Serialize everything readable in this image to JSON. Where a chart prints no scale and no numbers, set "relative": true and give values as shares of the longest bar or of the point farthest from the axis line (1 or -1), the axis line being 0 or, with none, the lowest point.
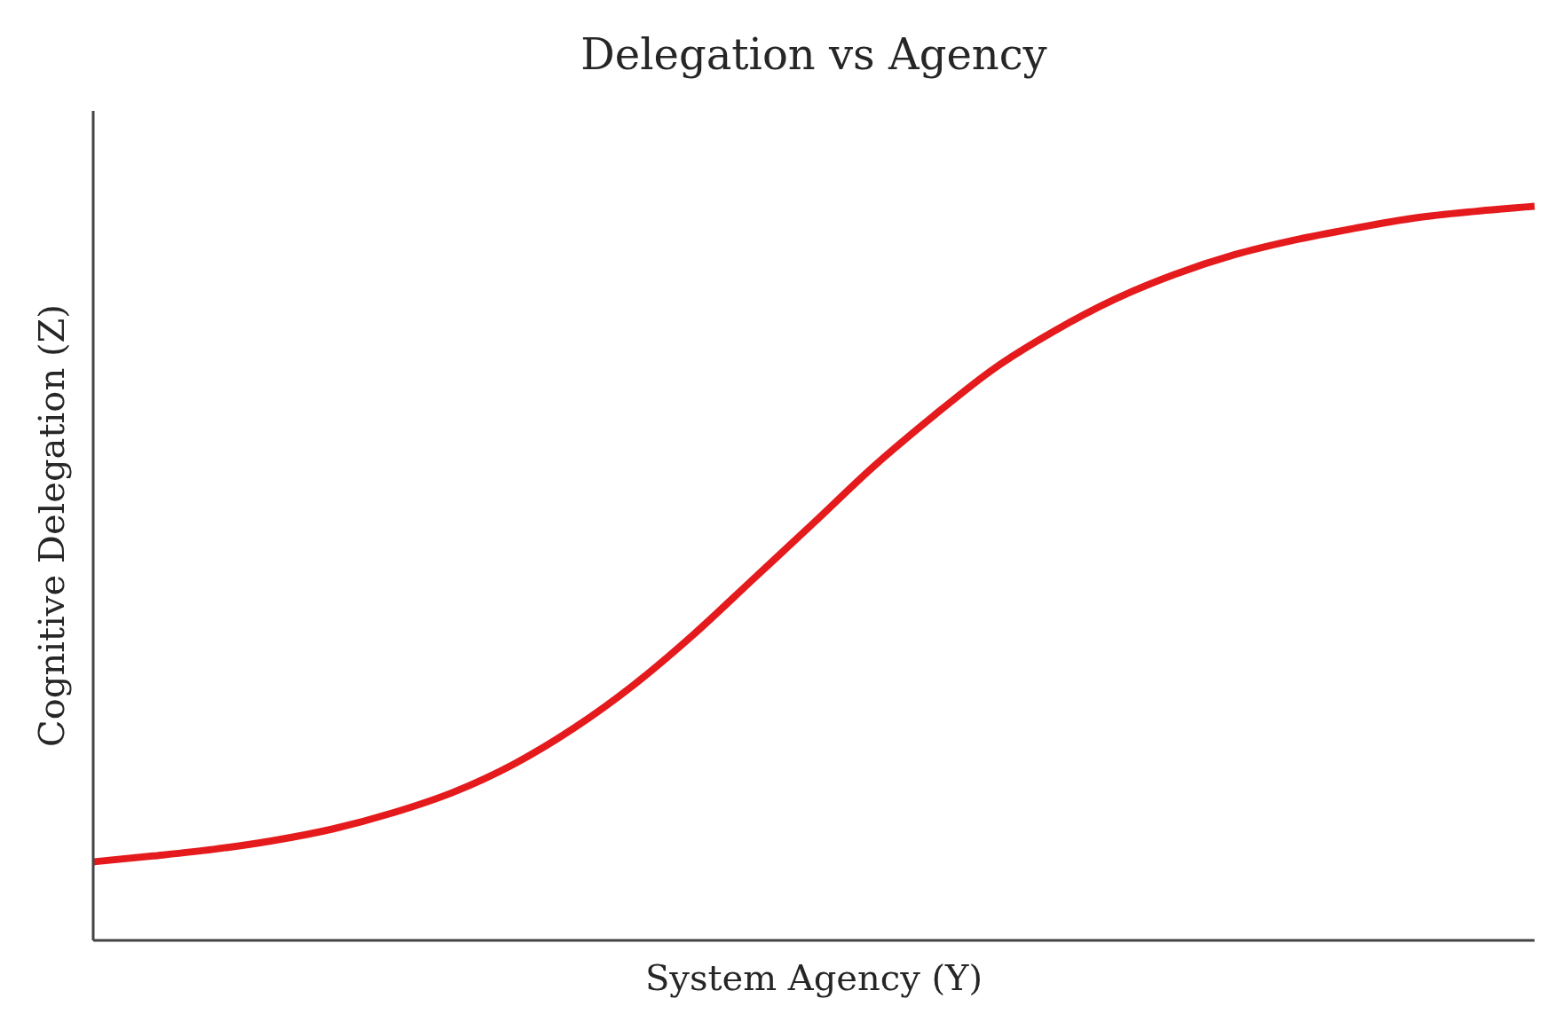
{
  "chart_data": {
    "type": "line",
    "title": "Delegation vs Agency",
    "xlabel": "System Agency (Y)",
    "ylabel": "Cognitive Delegation (Z)",
    "relative": true,
    "line_style": "solid",
    "categories": [
      null,
      null,
      null,
      null,
      null,
      null,
      null,
      null,
      null,
      null,
      null,
      null,
      null,
      null,
      null,
      null,
      null,
      null,
      null,
      null,
      null,
      null,
      null,
      null,
      null
    ],
    "series": [
      {
        "color": "#e41a1c",
        "values": [
          0.107,
          0.115,
          0.124,
          0.136,
          0.152,
          0.174,
          0.202,
          0.24,
          0.289,
          0.348,
          0.417,
          0.493,
          0.569,
          0.646,
          0.715,
          0.779,
          0.83,
          0.873,
          0.907,
          0.934,
          0.954,
          0.97,
          0.984,
          0.993,
          1.0
        ]
      }
    ]
  }
}
